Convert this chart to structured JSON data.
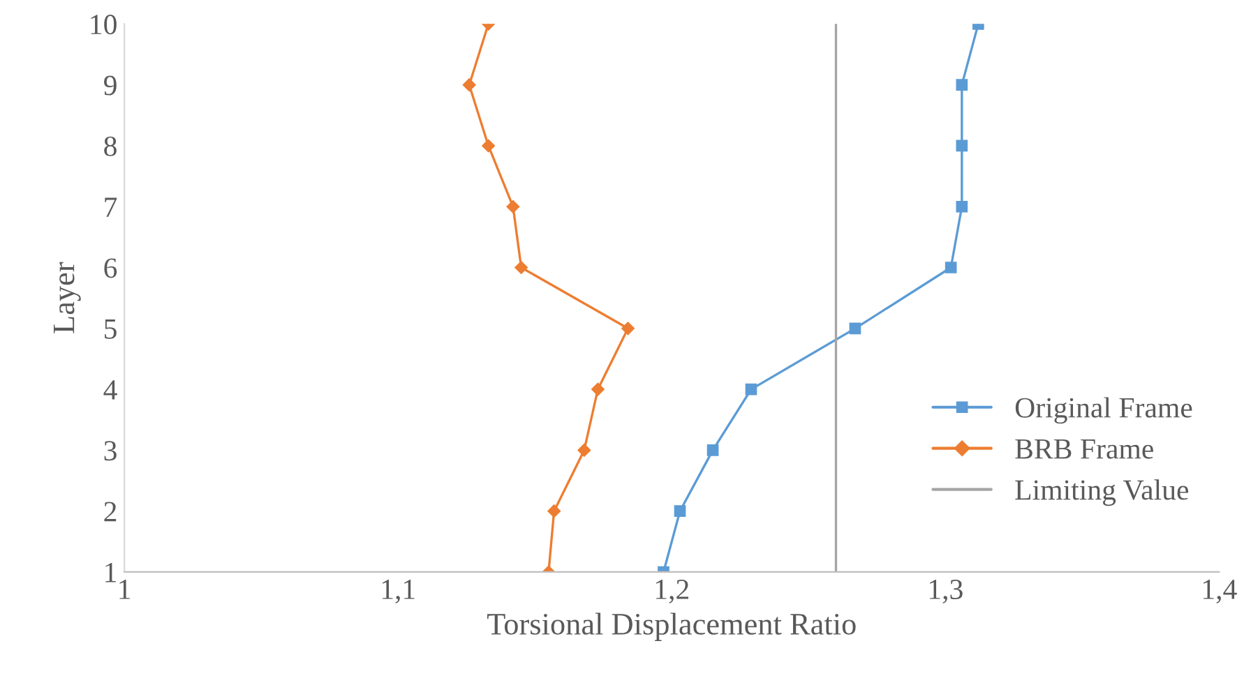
{
  "chart_data": {
    "type": "line",
    "xlabel": "Torsional Displacement Ratio",
    "ylabel": "Layer",
    "series": [
      {
        "name": "Original Frame",
        "color": "#5b9bd5",
        "marker": "square",
        "x": [
          1.197,
          1.203,
          1.215,
          1.229,
          1.267,
          1.302,
          1.306,
          1.306,
          1.306,
          1.312
        ],
        "values": [
          1,
          2,
          3,
          4,
          5,
          6,
          7,
          8,
          9,
          10
        ]
      },
      {
        "name": "BRB Frame",
        "color": "#ed7d31",
        "marker": "diamond",
        "x": [
          1.155,
          1.157,
          1.168,
          1.173,
          1.184,
          1.145,
          1.142,
          1.133,
          1.126,
          1.133
        ],
        "values": [
          1,
          2,
          3,
          4,
          5,
          6,
          7,
          8,
          9,
          10
        ]
      },
      {
        "name": "Limiting Value",
        "color": "#a5a5a5",
        "marker": "none",
        "x": [
          1.26,
          1.26
        ],
        "values": [
          1,
          10
        ]
      }
    ],
    "xlim": [
      1,
      1.4
    ],
    "xticks": [
      1,
      {
        "value": 1.1,
        "label": "1,1"
      },
      {
        "value": 1.2,
        "label": "1,2"
      },
      {
        "value": 1.3,
        "label": "1,3"
      },
      {
        "value": 1.4,
        "label": "1,4"
      }
    ],
    "ylim": [
      1,
      10
    ],
    "yticks": [
      1,
      2,
      3,
      4,
      5,
      6,
      7,
      8,
      9,
      10
    ],
    "grid": false,
    "legend": "right",
    "line_style": "solid"
  }
}
